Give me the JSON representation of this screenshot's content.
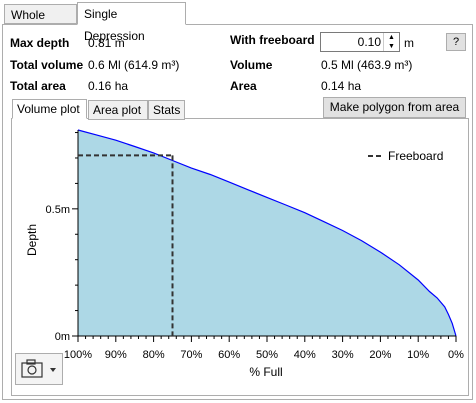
{
  "tabs": [
    "Whole Field",
    "Single Depression"
  ],
  "stats": {
    "max_depth_label": "Max depth",
    "max_depth_value": "0.81 m",
    "total_volume_label": "Total volume",
    "total_volume_value": "0.6 Ml (614.9 m³)",
    "total_area_label": "Total area",
    "total_area_value": "0.16 ha",
    "with_freeboard_label": "With freeboard",
    "freeboard_value": "0.10",
    "freeboard_unit": "m",
    "volume_label": "Volume",
    "volume_value": "0.5 Ml (463.9 m³)",
    "area_label": "Area",
    "area_value": "0.14 ha",
    "help_label": "?"
  },
  "inner_tabs": [
    "Volume plot",
    "Area plot",
    "Stats"
  ],
  "make_polygon_label": "Make polygon from area",
  "chart_data": {
    "type": "area",
    "xlabel": "% Full",
    "ylabel": "Depth",
    "x_ticks": [
      "100%",
      "90%",
      "80%",
      "70%",
      "60%",
      "50%",
      "40%",
      "30%",
      "20%",
      "10%",
      "0%"
    ],
    "y_ticks": [
      "0.5m",
      "0m"
    ],
    "xlim": [
      100,
      0
    ],
    "ylim": [
      0,
      0.81
    ],
    "legend": {
      "label": "Freeboard",
      "placement": "top-right"
    },
    "series": [
      {
        "x": [
          100,
          95,
          90,
          85,
          80,
          75,
          70,
          65,
          60,
          55,
          50,
          45,
          40,
          35,
          30,
          25,
          20,
          15,
          10,
          7,
          5,
          3,
          2,
          1,
          0
        ],
        "y": [
          0.81,
          0.79,
          0.77,
          0.745,
          0.72,
          0.69,
          0.66,
          0.635,
          0.605,
          0.575,
          0.545,
          0.515,
          0.485,
          0.45,
          0.415,
          0.375,
          0.33,
          0.28,
          0.22,
          0.175,
          0.15,
          0.115,
          0.085,
          0.05,
          0.0
        ]
      }
    ],
    "freeboard_line": {
      "x": 75,
      "y": 0.71
    }
  },
  "colors": {
    "fill": "#add8e6",
    "line": "#0000ff",
    "freeboard": "#333333"
  }
}
